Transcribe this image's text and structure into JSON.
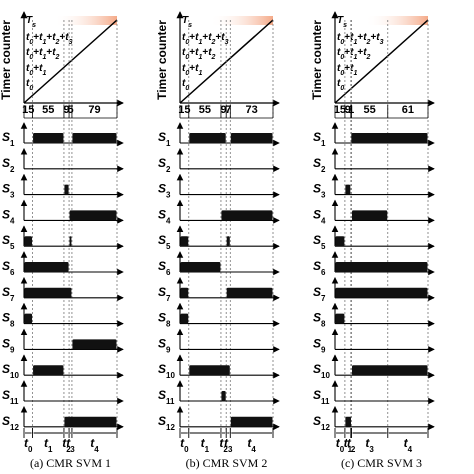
{
  "figure": {
    "y_axis_label": "Timer counter",
    "counter_levels": [
      "T",
      "t",
      "t",
      "t",
      "t"
    ],
    "counter_levels_full": [
      "Ts",
      "t0+t1+t2+t3",
      "t0+t1+t2",
      "t0+t1",
      "t0"
    ],
    "signals": [
      "S1",
      "S2",
      "S3",
      "S4",
      "S5",
      "S6",
      "S7",
      "S8",
      "S9",
      "S10",
      "S11",
      "S12"
    ],
    "time_labels": [
      "t0",
      "t1",
      "t2",
      "t3",
      "t4"
    ],
    "colors": {
      "ramp": "#000000",
      "shade": "#f4a582",
      "pulse": "#111111"
    }
  },
  "panels": [
    {
      "caption": "(a) CMR SVM 1",
      "durations": [
        "15",
        "55",
        "9",
        "5",
        "79"
      ],
      "segment_widths": [
        15,
        55,
        9,
        5,
        79
      ],
      "pulses": {
        "S1": [
          [
            1,
            2
          ],
          [
            4,
            5
          ]
        ],
        "S2": [],
        "S3": [
          [
            2,
            3
          ]
        ],
        "S4": [
          [
            3,
            5
          ]
        ],
        "S5": [
          [
            0,
            1
          ],
          [
            3,
            4
          ]
        ],
        "S6": [
          [
            0,
            3
          ]
        ],
        "S7": [
          [
            0,
            4
          ]
        ],
        "S8": [
          [
            0,
            1
          ]
        ],
        "S9": [
          [
            4,
            5
          ]
        ],
        "S10": [
          [
            1,
            2
          ]
        ],
        "S11": [],
        "S12": [
          [
            2,
            5
          ]
        ]
      }
    },
    {
      "caption": "(b) CMR SVM 2",
      "durations": [
        "15",
        "55",
        "9",
        "7",
        "73"
      ],
      "segment_widths": [
        15,
        55,
        9,
        7,
        73
      ],
      "pulses": {
        "S1": [
          [
            1,
            3
          ],
          [
            4,
            5
          ]
        ],
        "S2": [],
        "S3": [],
        "S4": [
          [
            2,
            5
          ]
        ],
        "S5": [
          [
            0,
            1
          ],
          [
            3,
            4
          ]
        ],
        "S6": [
          [
            0,
            2
          ]
        ],
        "S7": [
          [
            0,
            1
          ],
          [
            3,
            5
          ]
        ],
        "S8": [
          [
            0,
            1
          ]
        ],
        "S9": [],
        "S10": [
          [
            1,
            4
          ]
        ],
        "S11": [
          [
            2,
            3
          ]
        ],
        "S12": [
          [
            4,
            5
          ]
        ]
      }
    },
    {
      "caption": "(c) CMR SVM 3",
      "durations": [
        "15",
        "9",
        "1",
        "55",
        "61"
      ],
      "segment_widths": [
        15,
        9,
        1,
        55,
        61
      ],
      "pulses": {
        "S1": [
          [
            2,
            5
          ]
        ],
        "S2": [],
        "S3": [
          [
            1,
            2
          ]
        ],
        "S4": [
          [
            3,
            4
          ]
        ],
        "S5": [
          [
            0,
            1
          ]
        ],
        "S6": [
          [
            0,
            5
          ]
        ],
        "S7": [
          [
            0,
            5
          ]
        ],
        "S8": [
          [
            0,
            1
          ]
        ],
        "S9": [],
        "S10": [
          [
            3,
            5
          ]
        ],
        "S11": [],
        "S12": [
          [
            1,
            3
          ]
        ]
      }
    }
  ]
}
